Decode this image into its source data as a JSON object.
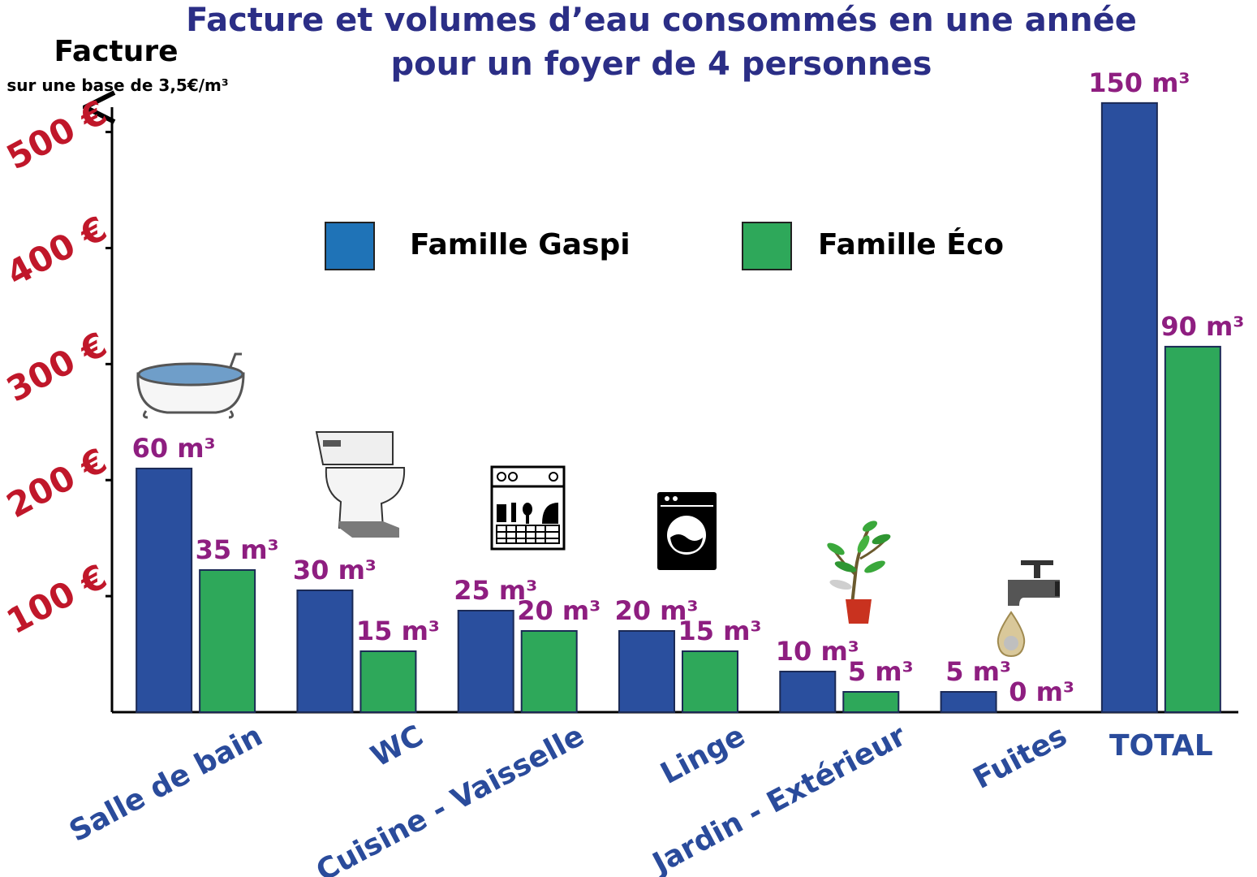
{
  "chart_data": {
    "type": "bar",
    "title_line1": "Facture et volumes d’eau consommés en une année",
    "title_line2": "pour un foyer de 4 personnes",
    "ylabel": "Facture",
    "ylabel_sub": "sur une base de 3,5€/m³",
    "yticks": [
      {
        "value": 100,
        "label": "100 €"
      },
      {
        "value": 200,
        "label": "200 €"
      },
      {
        "value": 300,
        "label": "300 €"
      },
      {
        "value": 400,
        "label": "400 €"
      },
      {
        "value": 500,
        "label": "500 €"
      }
    ],
    "ylim": [
      0,
      520
    ],
    "price_per_m3": 3.5,
    "categories": [
      "Salle de bain",
      "WC",
      "Cuisine - Vaisselle",
      "Linge",
      "Jardin - Extérieur",
      "Fuites",
      "TOTAL"
    ],
    "series": [
      {
        "name": "Famille Gaspi",
        "color": "#2a4f9e",
        "volumes_m3": [
          60,
          30,
          25,
          20,
          10,
          5,
          150
        ],
        "labels": [
          "60 m³",
          "30 m³",
          "25 m³",
          "20 m³",
          "10 m³",
          "5 m³",
          "150 m³"
        ]
      },
      {
        "name": "Famille Éco",
        "color": "#2ea85a",
        "volumes_m3": [
          35,
          15,
          20,
          15,
          5,
          0,
          90
        ],
        "labels": [
          "35 m³",
          "15 m³",
          "20 m³",
          "15 m³",
          "5 m³",
          "0 m³",
          "90 m³"
        ]
      }
    ],
    "legend_colors": [
      "#1f73b7",
      "#2ea85a"
    ],
    "legend_placement": "top-center",
    "grid": false
  },
  "icons": [
    "bathtub-icon",
    "toilet-icon",
    "dishwasher-icon",
    "washing-machine-icon",
    "plant-icon",
    "faucet-icon"
  ]
}
